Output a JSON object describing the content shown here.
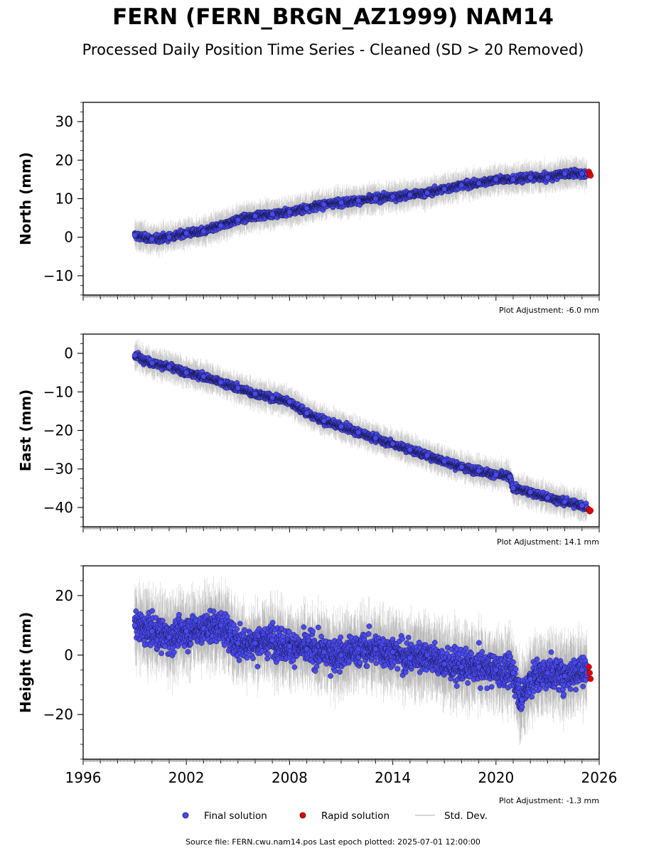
{
  "title": "FERN (FERN_BRGN_AZ1999) NAM14",
  "subtitle": "Processed Daily Position Time Series - Cleaned (SD > 20 Removed)",
  "legend": {
    "final": "Final solution",
    "rapid": "Rapid solution",
    "std": "Std. Dev."
  },
  "footer": "Source file: FERN.cwu.nam14.pos  Last epoch plotted: 2025-07-01 12:00:00",
  "colors": {
    "final": "#4a4af0",
    "rapid": "#e00000",
    "errorbar": "#c8c8c8"
  },
  "chart_data": [
    {
      "type": "scatter",
      "ylabel": "North (mm)",
      "adjustment": "Plot Adjustment: -6.0 mm",
      "xlim": [
        1996,
        2026
      ],
      "ylim": [
        -15,
        35
      ],
      "yticks": [
        -10,
        0,
        10,
        20,
        30
      ],
      "xticks": [],
      "series": [
        {
          "name": "Final solution",
          "x": [
            1999.0,
            2000.0,
            2001.0,
            2002.0,
            2003.0,
            2004.0,
            2005.0,
            2006.0,
            2007.0,
            2008.0,
            2009.0,
            2010.0,
            2011.0,
            2012.0,
            2013.0,
            2014.0,
            2015.0,
            2016.0,
            2017.0,
            2018.0,
            2019.0,
            2020.0,
            2021.0,
            2022.0,
            2023.0,
            2024.0,
            2025.0,
            2025.3
          ],
          "y": [
            0.5,
            -0.5,
            0.0,
            1.0,
            1.5,
            3.0,
            4.5,
            5.5,
            6.0,
            6.5,
            7.5,
            8.5,
            9.0,
            9.5,
            10.0,
            10.5,
            11.0,
            11.5,
            12.5,
            13.5,
            14.0,
            15.0,
            15.0,
            15.5,
            15.5,
            16.5,
            16.5,
            16.5
          ]
        },
        {
          "name": "Rapid solution",
          "x": [
            2025.4,
            2025.45,
            2025.5
          ],
          "y": [
            17.0,
            16.5,
            16.0
          ]
        }
      ]
    },
    {
      "type": "scatter",
      "ylabel": "East (mm)",
      "adjustment": "Plot Adjustment: 14.1 mm",
      "xlim": [
        1996,
        2026
      ],
      "ylim": [
        -45,
        5
      ],
      "yticks": [
        -40,
        -30,
        -20,
        -10,
        0
      ],
      "xticks": [],
      "series": [
        {
          "name": "Final solution",
          "x": [
            1999.0,
            2000.0,
            2001.0,
            2002.0,
            2003.0,
            2004.0,
            2005.0,
            2006.0,
            2007.0,
            2008.0,
            2009.0,
            2010.0,
            2011.0,
            2012.0,
            2013.0,
            2014.0,
            2015.0,
            2016.0,
            2017.0,
            2018.0,
            2019.0,
            2020.0,
            2020.8,
            2021.0,
            2022.0,
            2023.0,
            2024.0,
            2025.0,
            2025.3
          ],
          "y": [
            -0.5,
            -2.5,
            -3.5,
            -5.0,
            -6.0,
            -7.5,
            -9.0,
            -10.5,
            -11.5,
            -12.5,
            -15.5,
            -17.5,
            -19.0,
            -20.5,
            -22.0,
            -23.5,
            -25.0,
            -26.5,
            -28.0,
            -29.5,
            -30.5,
            -31.5,
            -32.0,
            -35.0,
            -36.0,
            -37.5,
            -38.5,
            -39.5,
            -40.0
          ]
        },
        {
          "name": "Rapid solution",
          "x": [
            2025.4,
            2025.45,
            2025.5
          ],
          "y": [
            -40.5,
            -41.0,
            -40.8
          ]
        }
      ]
    },
    {
      "type": "scatter",
      "ylabel": "Height (mm)",
      "adjustment": "Plot Adjustment: -1.3 mm",
      "xlim": [
        1996,
        2026
      ],
      "ylim": [
        -35,
        30
      ],
      "yticks": [
        -20,
        0,
        20
      ],
      "xticks": [
        "1996",
        "2002",
        "2008",
        "2014",
        "2020",
        "2026"
      ],
      "series": [
        {
          "name": "Final solution",
          "x": [
            1999.0,
            2000.0,
            2001.0,
            2002.0,
            2003.0,
            2004.0,
            2005.0,
            2006.0,
            2007.0,
            2008.0,
            2009.0,
            2010.0,
            2011.0,
            2012.0,
            2013.0,
            2014.0,
            2015.0,
            2016.0,
            2017.0,
            2018.0,
            2019.0,
            2020.0,
            2021.0,
            2021.5,
            2022.0,
            2023.0,
            2024.0,
            2025.0,
            2025.3
          ],
          "y": [
            10.0,
            8.0,
            6.0,
            8.0,
            9.0,
            10.0,
            4.0,
            4.0,
            5.0,
            3.0,
            2.0,
            1.0,
            0.0,
            2.0,
            2.0,
            1.0,
            -1.0,
            0.0,
            -3.0,
            -4.0,
            -4.0,
            -5.0,
            -6.0,
            -15.0,
            -8.0,
            -6.0,
            -7.0,
            -5.0,
            -6.0
          ]
        },
        {
          "name": "Rapid solution",
          "x": [
            2025.4,
            2025.45,
            2025.5
          ],
          "y": [
            -4.0,
            -6.0,
            -8.0
          ]
        }
      ]
    }
  ]
}
